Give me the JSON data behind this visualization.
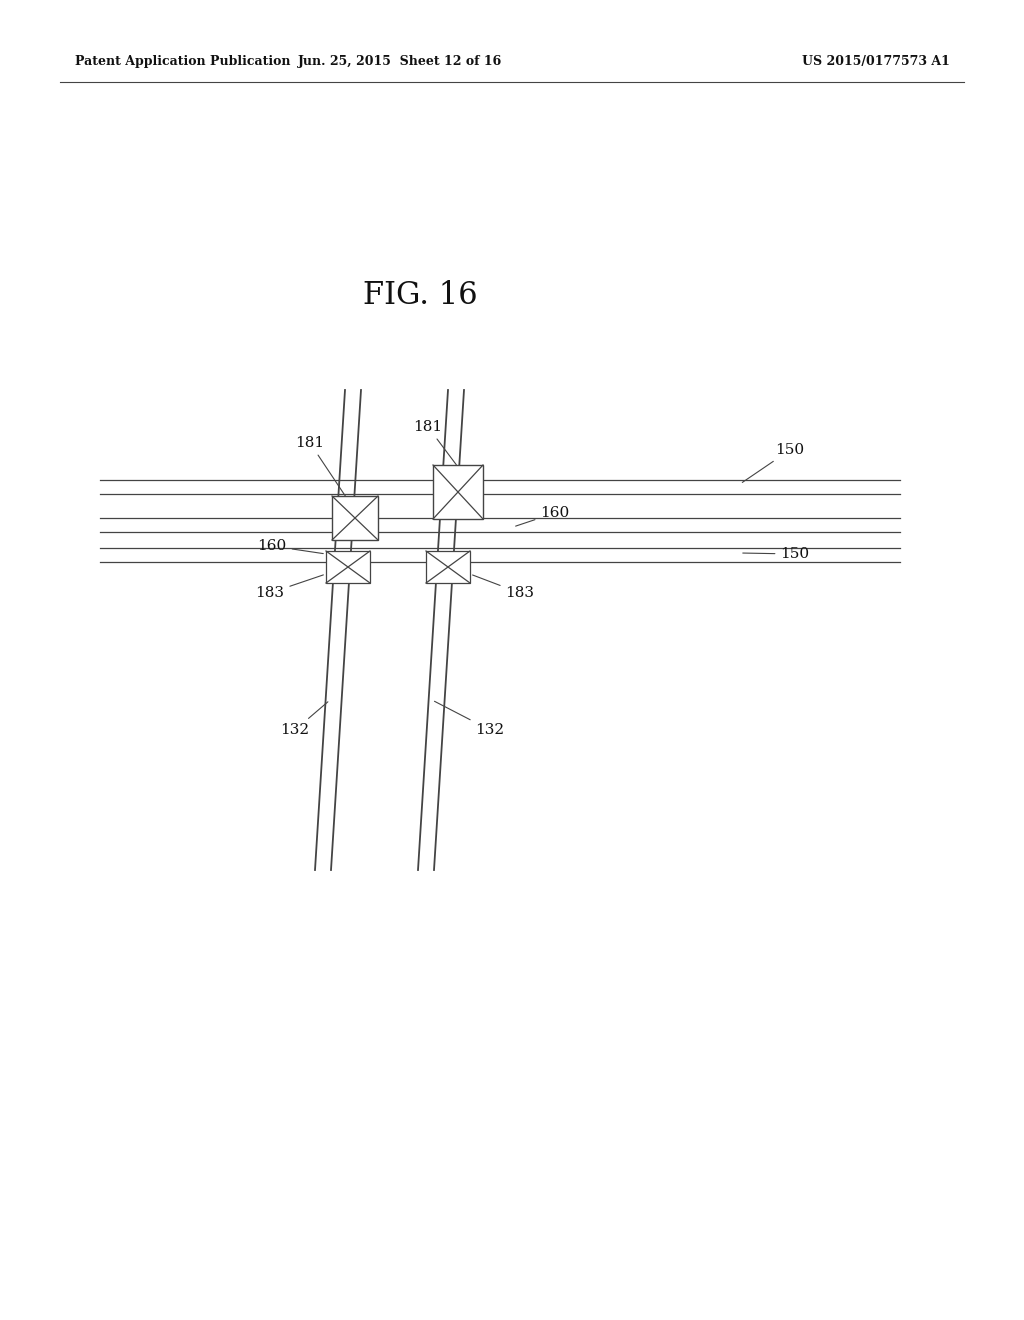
{
  "bg_color": "#ffffff",
  "fig_label": "FIG. 16",
  "header_left": "Patent Application Publication",
  "header_mid": "Jun. 25, 2015  Sheet 12 of 16",
  "header_right": "US 2015/0177573 A1",
  "line_color": "#444444"
}
